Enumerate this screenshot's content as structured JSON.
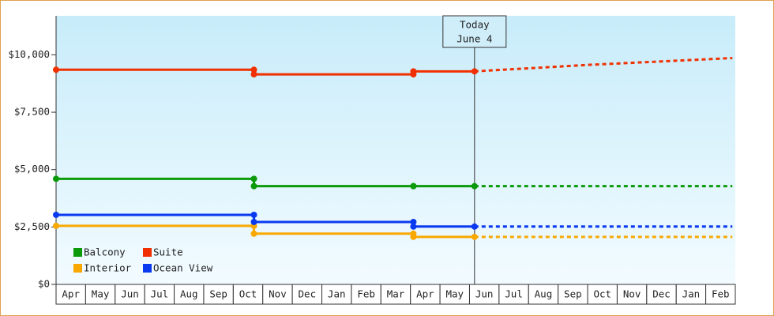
{
  "chart_data": {
    "type": "line",
    "categories": [
      "Apr",
      "May",
      "Jun",
      "Jul",
      "Aug",
      "Sep",
      "Oct",
      "Nov",
      "Dec",
      "Jan",
      "Feb",
      "Mar",
      "Apr",
      "May",
      "Jun",
      "Jul",
      "Aug",
      "Sep",
      "Oct",
      "Nov",
      "Dec",
      "Jan",
      "Feb"
    ],
    "xlim": [
      0,
      23
    ],
    "ylim": [
      0,
      11700
    ],
    "yticks": [
      {
        "value": 0,
        "label": "$0"
      },
      {
        "value": 2500,
        "label": "$2,500"
      },
      {
        "value": 5000,
        "label": "$5,000"
      },
      {
        "value": 7500,
        "label": "$7,500"
      },
      {
        "value": 10000,
        "label": "$10,000"
      }
    ],
    "today": {
      "x": 14.17,
      "label": [
        "Today",
        "June 4"
      ]
    },
    "series": [
      {
        "name": "Balcony",
        "color": "#0a9a0a",
        "x": [
          0,
          6.7,
          6.7,
          12.1,
          12.1,
          14.17
        ],
        "values": [
          4600,
          4600,
          4280,
          4280,
          4280,
          4280
        ],
        "forecast_x": [
          14.17,
          22.9
        ],
        "forecast_values": [
          4280,
          4280
        ]
      },
      {
        "name": "Suite",
        "color": "#f03000",
        "x": [
          0,
          6.7,
          6.7,
          12.1,
          12.1,
          14.17
        ],
        "values": [
          9350,
          9350,
          9150,
          9150,
          9280,
          9280
        ],
        "forecast_x": [
          14.17,
          18,
          22.9
        ],
        "forecast_values": [
          9280,
          9560,
          9860
        ]
      },
      {
        "name": "Interior",
        "color": "#f8a800",
        "x": [
          0,
          6.7,
          6.7,
          12.1,
          12.1,
          14.17
        ],
        "values": [
          2550,
          2550,
          2210,
          2210,
          2070,
          2070
        ],
        "forecast_x": [
          14.17,
          22.9
        ],
        "forecast_values": [
          2070,
          2070
        ]
      },
      {
        "name": "Ocean View",
        "color": "#0a3af0",
        "x": [
          0,
          6.7,
          6.7,
          12.1,
          12.1,
          14.17
        ],
        "values": [
          3030,
          3030,
          2720,
          2720,
          2520,
          2520
        ],
        "forecast_x": [
          14.17,
          22.9
        ],
        "forecast_values": [
          2520,
          2520
        ]
      }
    ]
  }
}
